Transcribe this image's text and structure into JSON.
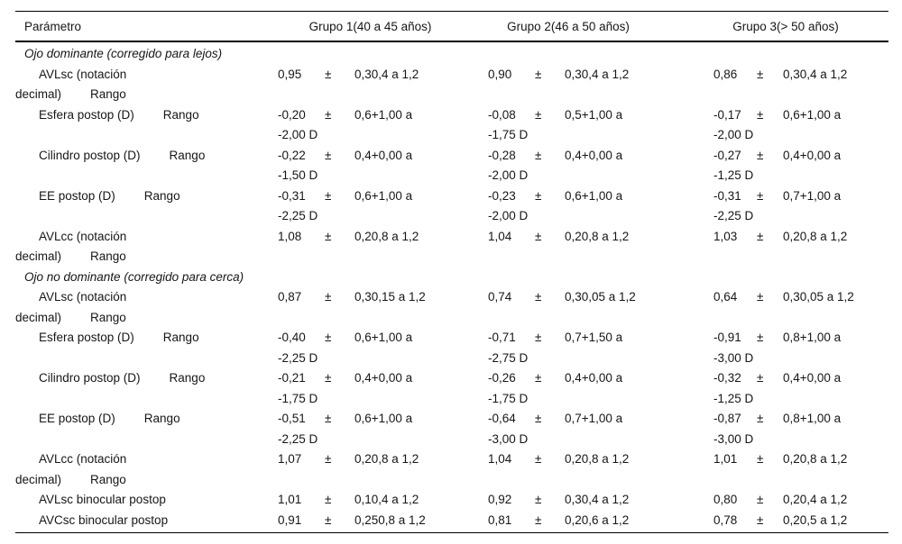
{
  "table": {
    "header": {
      "param": "Parámetro",
      "groups": [
        "Grupo 1(40 a 45 años)",
        "Grupo 2(46 a 50 años)",
        "Grupo 3(> 50 años)"
      ]
    },
    "pm": "±",
    "rows": [
      {
        "type": "section",
        "label": "Ojo dominante (corregido para lejos)"
      },
      {
        "type": "param",
        "line1": "AVLsc (notación",
        "line2": "decimal)",
        "rango": "Rango",
        "rango_on": "line2",
        "cells": [
          [
            "0,95",
            "0,30,4 a 1,2",
            ""
          ],
          [
            "0,90",
            "0,30,4 a 1,2",
            ""
          ],
          [
            "0,86",
            "0,30,4 a 1,2",
            ""
          ]
        ]
      },
      {
        "type": "param",
        "line1": "Esfera postop (D)",
        "rango": "Rango",
        "rango_on": "line1",
        "cells": [
          [
            "-0,20",
            "0,6+1,00 a",
            "-2,00 D"
          ],
          [
            "-0,08",
            "0,5+1,00 a",
            "-1,75 D"
          ],
          [
            "-0,17",
            "0,6+1,00 a",
            "-2,00 D"
          ]
        ]
      },
      {
        "type": "param",
        "line1": "Cilindro postop (D)",
        "rango": "Rango",
        "rango_on": "line1",
        "cells": [
          [
            "-0,22",
            "0,4+0,00 a",
            "-1,50 D"
          ],
          [
            "-0,28",
            "0,4+0,00 a",
            "-2,00 D"
          ],
          [
            "-0,27",
            "0,4+0,00 a",
            "-1,25 D"
          ]
        ]
      },
      {
        "type": "param",
        "line1": "EE postop (D)",
        "rango": "Rango",
        "rango_on": "line1",
        "cells": [
          [
            "-0,31",
            "0,6+1,00 a",
            "-2,25 D"
          ],
          [
            "-0,23",
            "0,6+1,00 a",
            "-2,00 D"
          ],
          [
            "-0,31",
            "0,7+1,00 a",
            "-2,25 D"
          ]
        ]
      },
      {
        "type": "param",
        "line1": "AVLcc (notación",
        "line2": "decimal)",
        "rango": "Rango",
        "rango_on": "line2",
        "cells": [
          [
            "1,08",
            "0,20,8 a 1,2",
            ""
          ],
          [
            "1,04",
            "0,20,8 a 1,2",
            ""
          ],
          [
            "1,03",
            "0,20,8 a 1,2",
            ""
          ]
        ]
      },
      {
        "type": "section",
        "label": "Ojo no dominante (corregido para cerca)"
      },
      {
        "type": "param",
        "line1": "AVLsc (notación",
        "line2": "decimal)",
        "rango": "Rango",
        "rango_on": "line2",
        "cells": [
          [
            "0,87",
            "0,30,15 a 1,2",
            ""
          ],
          [
            "0,74",
            "0,30,05 a 1,2",
            ""
          ],
          [
            "0,64",
            "0,30,05 a 1,2",
            ""
          ]
        ]
      },
      {
        "type": "param",
        "line1": "Esfera postop (D)",
        "rango": "Rango",
        "rango_on": "line1",
        "cells": [
          [
            "-0,40",
            "0,6+1,00 a",
            "-2,25 D"
          ],
          [
            "-0,71",
            "0,7+1,50 a",
            "-2,75 D"
          ],
          [
            "-0,91",
            "0,8+1,00 a",
            "-3,00 D"
          ]
        ]
      },
      {
        "type": "param",
        "line1": "Cilindro postop (D)",
        "rango": "Rango",
        "rango_on": "line1",
        "cells": [
          [
            "-0,21",
            "0,4+0,00 a",
            "-1,75 D"
          ],
          [
            "-0,26",
            "0,4+0,00 a",
            "-1,75 D"
          ],
          [
            "-0,32",
            "0,4+0,00 a",
            "-1,25 D"
          ]
        ]
      },
      {
        "type": "param",
        "line1": "EE postop (D)",
        "rango": "Rango",
        "rango_on": "line1",
        "cells": [
          [
            "-0,51",
            "0,6+1,00 a",
            "-2,25 D"
          ],
          [
            "-0,64",
            "0,7+1,00 a",
            "-3,00 D"
          ],
          [
            "-0,87",
            "0,8+1,00 a",
            "-3,00 D"
          ]
        ]
      },
      {
        "type": "param",
        "line1": "AVLcc (notación",
        "line2": "decimal)",
        "rango": "Rango",
        "rango_on": "line2",
        "cells": [
          [
            "1,07",
            "0,20,8 a 1,2",
            ""
          ],
          [
            "1,04",
            "0,20,8 a 1,2",
            ""
          ],
          [
            "1,01",
            "0,20,8 a 1,2",
            ""
          ]
        ]
      },
      {
        "type": "param",
        "line1": "AVLsc binocular postop",
        "cells": [
          [
            "1,01",
            "0,10,4 a 1,2",
            ""
          ],
          [
            "0,92",
            "0,30,4 a 1,2",
            ""
          ],
          [
            "0,80",
            "0,20,4 a 1,2",
            ""
          ]
        ]
      },
      {
        "type": "param",
        "line1": "AVCsc binocular postop",
        "cells": [
          [
            "0,91",
            "0,250,8 a 1,2",
            ""
          ],
          [
            "0,81",
            "0,20,6 a 1,2",
            ""
          ],
          [
            "0,78",
            "0,20,5 a 1,2",
            ""
          ]
        ]
      }
    ]
  }
}
